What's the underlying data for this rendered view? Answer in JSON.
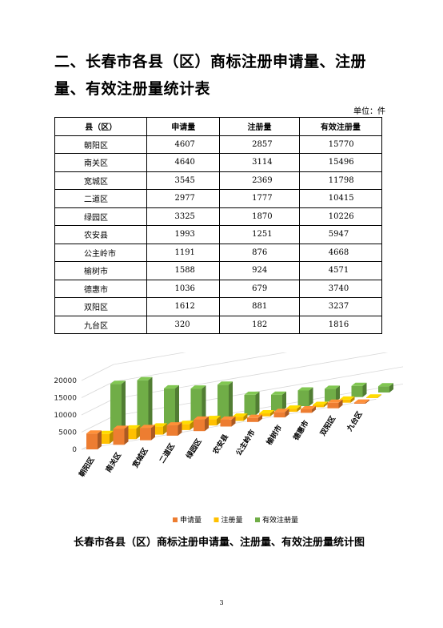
{
  "heading": "二、长春市各县（区）商标注册申请量、注册量、有效注册量统计表",
  "unit_label": "单位：件",
  "table": {
    "headers": [
      "县（区）",
      "申请量",
      "注册量",
      "有效注册量"
    ],
    "rows": [
      [
        "朝阳区",
        "4607",
        "2857",
        "15770"
      ],
      [
        "南关区",
        "4640",
        "3114",
        "15496"
      ],
      [
        "宽城区",
        "3545",
        "2369",
        "11798"
      ],
      [
        "二道区",
        "2977",
        "1777",
        "10415"
      ],
      [
        "绿园区",
        "3325",
        "1870",
        "10226"
      ],
      [
        "农安县",
        "1993",
        "1251",
        "5947"
      ],
      [
        "公主岭市",
        "1191",
        "876",
        "4668"
      ],
      [
        "榆树市",
        "1588",
        "924",
        "4571"
      ],
      [
        "德惠市",
        "1036",
        "679",
        "3740"
      ],
      [
        "双阳区",
        "1612",
        "881",
        "3237"
      ],
      [
        "九台区",
        "320",
        "182",
        "1816"
      ]
    ]
  },
  "chart_data": {
    "type": "bar",
    "categories": [
      "朝阳区",
      "南关区",
      "宽城区",
      "二道区",
      "绿园区",
      "农安县",
      "公主岭市",
      "榆树市",
      "德惠市",
      "双阳区",
      "九台区"
    ],
    "series": [
      {
        "name": "申请量",
        "color": "#ED7D31",
        "values": [
          4607,
          4640,
          3545,
          2977,
          3325,
          1993,
          1191,
          1588,
          1036,
          1612,
          320
        ]
      },
      {
        "name": "注册量",
        "color": "#FFC000",
        "values": [
          2857,
          3114,
          2369,
          1777,
          1870,
          1251,
          876,
          924,
          679,
          881,
          182
        ]
      },
      {
        "name": "有效注册量",
        "color": "#70AD47",
        "values": [
          15770,
          15496,
          11798,
          10415,
          10226,
          5947,
          4668,
          4571,
          3740,
          3237,
          1816
        ]
      }
    ],
    "yticks": [
      "0",
      "5000",
      "10000",
      "15000",
      "20000"
    ],
    "ylim": [
      0,
      20000
    ],
    "grid": true,
    "legend_position": "bottom"
  },
  "caption": "长春市各县（区）商标注册申请量、注册量、有效注册量统计图",
  "page_number": "3"
}
